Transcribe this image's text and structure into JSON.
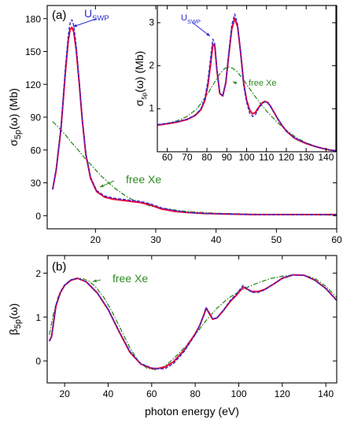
{
  "xlabel": "photon energy (eV)",
  "colors": {
    "total": "#e8003c",
    "uswp": "#2a2ad0",
    "free": "#2e8b22",
    "axis": "#000000"
  },
  "chart_data": [
    {
      "type": "line",
      "panel_label": "(a)",
      "ylabel_main": "σ",
      "ylabel_sub": "5p",
      "ylabel_tail": "(ω) (Mb)",
      "xlim": [
        12,
        60
      ],
      "ylim": [
        -12,
        192
      ],
      "xticks": [
        20,
        30,
        40,
        50,
        60
      ],
      "yticks": [
        0,
        30,
        60,
        90,
        120,
        150,
        180
      ],
      "annotations": [
        {
          "text_main": "U",
          "text_sub": "SWP",
          "target": [
            16.5,
            178
          ]
        },
        {
          "text_main": "free Xe",
          "text_sub": "",
          "target": [
            24,
            32
          ]
        }
      ],
      "series": [
        {
          "style": "total",
          "x": [
            12.9,
            13.5,
            14.3,
            15.0,
            15.5,
            15.8,
            16.1,
            16.4,
            16.8,
            17.3,
            17.8,
            18.4,
            19.2,
            20.2,
            21.5,
            23,
            24.5,
            26,
            27.5,
            29,
            31,
            33,
            35,
            38,
            42,
            46,
            50,
            55,
            60
          ],
          "y": [
            24,
            42,
            80,
            130,
            160,
            170,
            172,
            168,
            152,
            122,
            88,
            56,
            34,
            22,
            17,
            15,
            14,
            13,
            12,
            10,
            6,
            4,
            3,
            2,
            1.5,
            1,
            1,
            1,
            1
          ]
        },
        {
          "style": "uswp",
          "x": [
            12.9,
            13.5,
            14.3,
            15.0,
            15.5,
            15.8,
            16.1,
            16.4,
            16.8,
            17.3,
            17.8,
            18.4,
            19.2,
            20.2,
            21.5,
            23,
            24.5,
            26,
            27.5,
            29,
            31,
            33,
            35,
            38,
            42,
            46,
            50,
            55,
            60
          ],
          "y": [
            24,
            43,
            82,
            134,
            165,
            176,
            179,
            174,
            156,
            124,
            89,
            57,
            35,
            23,
            18,
            16,
            15,
            14,
            13,
            11,
            7,
            5,
            3,
            2,
            1.5,
            1,
            1,
            1,
            1
          ]
        },
        {
          "style": "free",
          "x": [
            12.9,
            14,
            15,
            16,
            17,
            18,
            19,
            20,
            21,
            22,
            23,
            24,
            25,
            26,
            27,
            28,
            29,
            30,
            32,
            34,
            36,
            38,
            40,
            45,
            50,
            55,
            60
          ],
          "y": [
            86,
            80,
            74,
            67,
            61,
            54,
            48,
            42,
            36,
            31,
            26,
            22,
            18,
            15,
            13,
            11,
            9,
            8,
            6,
            4.5,
            3.5,
            2.8,
            2.2,
            1.5,
            1,
            0.7,
            0.5
          ]
        }
      ]
    },
    {
      "type": "line",
      "panel_label": "",
      "ylabel_main": "σ",
      "ylabel_sub": "5p",
      "ylabel_tail": "(ω) (Mb)",
      "xlim": [
        55,
        145
      ],
      "ylim": [
        0,
        3.4
      ],
      "xticks": [
        60,
        70,
        80,
        90,
        100,
        110,
        120,
        130,
        140
      ],
      "yticks": [
        1,
        2,
        3
      ],
      "annotations": [
        {
          "text_main": "U",
          "text_sub": "SWP",
          "target": [
            83,
            2.6
          ]
        },
        {
          "text_main": "free Xe",
          "text_sub": "",
          "target": [
            95,
            1.82
          ]
        }
      ],
      "series": [
        {
          "style": "total",
          "x": [
            55,
            60,
            65,
            70,
            74,
            77,
            79,
            80.5,
            82,
            83,
            84,
            85,
            86.5,
            88,
            89.5,
            91,
            92.5,
            94,
            95.5,
            97,
            98.5,
            100,
            101.5,
            103,
            104.5,
            106,
            107.5,
            109,
            110.5,
            112,
            114,
            116,
            118,
            120,
            122,
            124,
            127,
            130,
            134,
            138,
            142,
            145
          ],
          "y": [
            0.62,
            0.65,
            0.69,
            0.75,
            0.84,
            0.98,
            1.2,
            1.55,
            2.1,
            2.5,
            2.45,
            1.9,
            1.35,
            1.3,
            1.6,
            2.25,
            2.85,
            3.1,
            2.9,
            2.3,
            1.6,
            1.2,
            0.97,
            0.88,
            0.92,
            1.03,
            1.12,
            1.17,
            1.15,
            1.06,
            0.9,
            0.74,
            0.6,
            0.48,
            0.4,
            0.32,
            0.25,
            0.19,
            0.13,
            0.08,
            0.04,
            0.02
          ]
        },
        {
          "style": "uswp",
          "x": [
            55,
            60,
            65,
            70,
            74,
            77,
            79,
            80.5,
            82,
            83,
            84,
            85,
            86.5,
            88,
            89.5,
            91,
            92.5,
            94,
            95.5,
            97,
            98.5,
            100,
            101.5,
            103,
            104.5,
            106,
            107.5,
            109,
            110.5,
            112,
            114,
            116,
            118,
            120,
            122,
            124,
            127,
            130,
            134,
            138,
            142,
            145
          ],
          "y": [
            0.63,
            0.66,
            0.7,
            0.76,
            0.85,
            1.0,
            1.25,
            1.65,
            2.25,
            2.62,
            2.5,
            1.92,
            1.37,
            1.3,
            1.62,
            2.3,
            2.95,
            3.2,
            2.95,
            2.3,
            1.55,
            1.15,
            0.9,
            0.82,
            0.87,
            1.0,
            1.1,
            1.16,
            1.14,
            1.05,
            0.9,
            0.75,
            0.61,
            0.49,
            0.41,
            0.33,
            0.26,
            0.2,
            0.13,
            0.08,
            0.04,
            0.02
          ]
        },
        {
          "style": "free",
          "x": [
            55,
            60,
            65,
            70,
            75,
            80,
            83,
            86,
            89,
            91,
            93,
            95,
            98,
            101,
            104,
            107,
            110,
            113,
            116,
            120,
            125,
            130,
            135,
            140,
            145
          ],
          "y": [
            0.62,
            0.66,
            0.72,
            0.82,
            1.0,
            1.32,
            1.55,
            1.78,
            1.94,
            1.97,
            1.94,
            1.87,
            1.7,
            1.5,
            1.3,
            1.12,
            0.95,
            0.8,
            0.66,
            0.5,
            0.33,
            0.21,
            0.12,
            0.06,
            0.03
          ]
        }
      ]
    },
    {
      "type": "line",
      "panel_label": "(b)",
      "ylabel_main": "β",
      "ylabel_sub": "5p",
      "ylabel_tail": "(ω)",
      "xlim": [
        12,
        145
      ],
      "ylim": [
        -0.5,
        2.4
      ],
      "xticks": [
        20,
        40,
        60,
        80,
        100,
        120,
        140
      ],
      "yticks": [
        0,
        1,
        2
      ],
      "annotations": [
        {
          "text_main": "free Xe",
          "text_sub": "",
          "target": [
            29,
            1.85
          ]
        }
      ],
      "series": [
        {
          "style": "total",
          "x": [
            13,
            14,
            15,
            16,
            18,
            20,
            23,
            26,
            30,
            35,
            40,
            45,
            50,
            55,
            60,
            63,
            66,
            70,
            75,
            80,
            82,
            84,
            85,
            86,
            88,
            90,
            93,
            96,
            99,
            102,
            104,
            106,
            109,
            112,
            116,
            120,
            125,
            130,
            135,
            140,
            145
          ],
          "y": [
            0.45,
            0.55,
            0.9,
            1.25,
            1.55,
            1.72,
            1.84,
            1.88,
            1.8,
            1.55,
            1.17,
            0.67,
            0.2,
            -0.07,
            -0.17,
            -0.17,
            -0.14,
            -0.02,
            0.25,
            0.62,
            0.8,
            1.05,
            1.2,
            1.12,
            0.95,
            0.98,
            1.15,
            1.35,
            1.5,
            1.68,
            1.63,
            1.58,
            1.58,
            1.63,
            1.75,
            1.88,
            1.96,
            1.95,
            1.84,
            1.65,
            1.38
          ]
        },
        {
          "style": "uswp",
          "x": [
            13,
            14,
            15,
            16,
            18,
            20,
            23,
            26,
            30,
            35,
            40,
            45,
            50,
            55,
            60,
            63,
            66,
            70,
            75,
            80,
            82,
            84,
            85,
            86,
            88,
            90,
            93,
            96,
            99,
            102,
            104,
            106,
            109,
            112,
            116,
            120,
            125,
            130,
            135,
            140,
            145
          ],
          "y": [
            0.45,
            0.57,
            0.92,
            1.27,
            1.57,
            1.73,
            1.85,
            1.88,
            1.8,
            1.55,
            1.18,
            0.68,
            0.22,
            -0.06,
            -0.16,
            -0.18,
            -0.18,
            -0.06,
            0.22,
            0.6,
            0.8,
            1.06,
            1.22,
            1.14,
            0.96,
            0.98,
            1.16,
            1.37,
            1.53,
            1.72,
            1.64,
            1.56,
            1.56,
            1.62,
            1.75,
            1.89,
            1.96,
            1.95,
            1.84,
            1.65,
            1.38
          ]
        },
        {
          "style": "free",
          "x": [
            13,
            14,
            15,
            17,
            19,
            22,
            25,
            28,
            31,
            34,
            38,
            42,
            46,
            50,
            54,
            58,
            62,
            66,
            70,
            75,
            80,
            85,
            90,
            95,
            100,
            105,
            110,
            115,
            120,
            125,
            130,
            135,
            140,
            145
          ],
          "y": [
            0.6,
            0.85,
            1.1,
            1.45,
            1.65,
            1.82,
            1.88,
            1.88,
            1.82,
            1.7,
            1.45,
            1.1,
            0.7,
            0.3,
            -0.02,
            -0.17,
            -0.2,
            -0.12,
            0.05,
            0.3,
            0.6,
            0.92,
            1.2,
            1.42,
            1.58,
            1.7,
            1.8,
            1.88,
            1.93,
            1.96,
            1.95,
            1.88,
            1.7,
            1.45
          ]
        }
      ]
    }
  ]
}
